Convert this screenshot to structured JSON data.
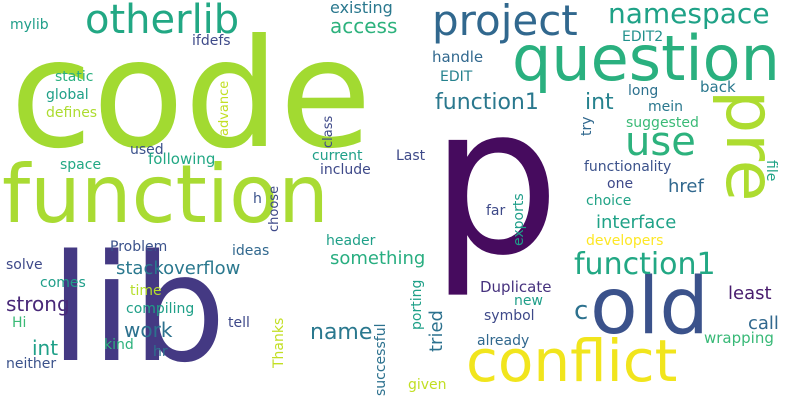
{
  "words": [
    {
      "text": "code",
      "color": "#a2da31"
    },
    {
      "text": "p",
      "color": "#460b5e"
    },
    {
      "text": "lib",
      "color": "#443983"
    },
    {
      "text": "function",
      "color": "#a9db33"
    },
    {
      "text": "question",
      "color": "#2ab07f"
    },
    {
      "text": "project",
      "color": "#31688e"
    },
    {
      "text": "otherlib",
      "color": "#22a884"
    },
    {
      "text": "conflict",
      "color": "#f1e51d"
    },
    {
      "text": "old",
      "color": "#3b528b"
    },
    {
      "text": "pre",
      "color": "#addc30"
    },
    {
      "text": "use",
      "color": "#2db27d"
    },
    {
      "text": "namespace",
      "color": "#1fa287"
    },
    {
      "text": "function1",
      "color": "#22a884"
    },
    {
      "text": "function1",
      "color": "#2a788e"
    },
    {
      "text": "int",
      "color": "#26828e"
    },
    {
      "text": "access",
      "color": "#2db27d"
    },
    {
      "text": "existing",
      "color": "#2a788e"
    },
    {
      "text": "ifdefs",
      "color": "#3e4a89"
    },
    {
      "text": "EDIT2",
      "color": "#21918c"
    },
    {
      "text": "handle",
      "color": "#31688e"
    },
    {
      "text": "EDIT",
      "color": "#26828e"
    },
    {
      "text": "mylib",
      "color": "#1f9e89"
    },
    {
      "text": "static",
      "color": "#2ab07f"
    },
    {
      "text": "global",
      "color": "#1fa088"
    },
    {
      "text": "defines",
      "color": "#addc30"
    },
    {
      "text": "advance",
      "color": "#c2df23"
    },
    {
      "text": "class",
      "color": "#3e4989"
    },
    {
      "text": "long",
      "color": "#2c718e"
    },
    {
      "text": "back",
      "color": "#2a788e"
    },
    {
      "text": "mein",
      "color": "#2a788e"
    },
    {
      "text": "suggested",
      "color": "#3aba76"
    },
    {
      "text": "try",
      "color": "#31688e"
    },
    {
      "text": "used",
      "color": "#3b528b"
    },
    {
      "text": "following",
      "color": "#22a884"
    },
    {
      "text": "space",
      "color": "#22a884"
    },
    {
      "text": "current",
      "color": "#1fa088"
    },
    {
      "text": "Last",
      "color": "#3e4a89"
    },
    {
      "text": "include",
      "color": "#3e4989"
    },
    {
      "text": "choose",
      "color": "#3e4989"
    },
    {
      "text": "functionality",
      "color": "#3b528b"
    },
    {
      "text": "one",
      "color": "#3e4989"
    },
    {
      "text": "choice",
      "color": "#20a386"
    },
    {
      "text": "file",
      "color": "#20a386"
    },
    {
      "text": "href",
      "color": "#31688e"
    },
    {
      "text": "exports",
      "color": "#1f9e89"
    },
    {
      "text": "far",
      "color": "#3e4a89"
    },
    {
      "text": "interface",
      "color": "#1fa287"
    },
    {
      "text": "developers",
      "color": "#fde725"
    },
    {
      "text": "h",
      "color": "#3b528b"
    },
    {
      "text": "Problem",
      "color": "#3b528b"
    },
    {
      "text": "ideas",
      "color": "#31688e"
    },
    {
      "text": "header",
      "color": "#1fa088"
    },
    {
      "text": "something",
      "color": "#28ae80"
    },
    {
      "text": "stackoverflow",
      "color": "#2a788e"
    },
    {
      "text": "solve",
      "color": "#3e4989"
    },
    {
      "text": "comes",
      "color": "#1f9e89"
    },
    {
      "text": "time",
      "color": "#b5de2b"
    },
    {
      "text": "strong",
      "color": "#482878"
    },
    {
      "text": "Duplicate",
      "color": "#46327e"
    },
    {
      "text": "least",
      "color": "#481b6d"
    },
    {
      "text": "compiling",
      "color": "#1fa088"
    },
    {
      "text": "porting",
      "color": "#1fa088"
    },
    {
      "text": "new",
      "color": "#1f9e89"
    },
    {
      "text": "work",
      "color": "#2c718e"
    },
    {
      "text": "name",
      "color": "#2a788e"
    },
    {
      "text": "tried",
      "color": "#2c718e"
    },
    {
      "text": "c",
      "color": "#2c718e"
    },
    {
      "text": "call",
      "color": "#31688e"
    },
    {
      "text": "Hi",
      "color": "#3aba76"
    },
    {
      "text": "tell",
      "color": "#3e4989"
    },
    {
      "text": "symbol",
      "color": "#3e4989"
    },
    {
      "text": "int",
      "color": "#1fa088"
    },
    {
      "text": "kind",
      "color": "#2db27d"
    },
    {
      "text": "Thanks",
      "color": "#c2df23"
    },
    {
      "text": "wrapping",
      "color": "#38b977"
    },
    {
      "text": "already",
      "color": "#31688e"
    },
    {
      "text": "neither",
      "color": "#3b528b"
    },
    {
      "text": "hr",
      "color": "#2c718e"
    },
    {
      "text": "successful",
      "color": "#2c718e"
    },
    {
      "text": "given",
      "color": "#c2df23"
    }
  ]
}
